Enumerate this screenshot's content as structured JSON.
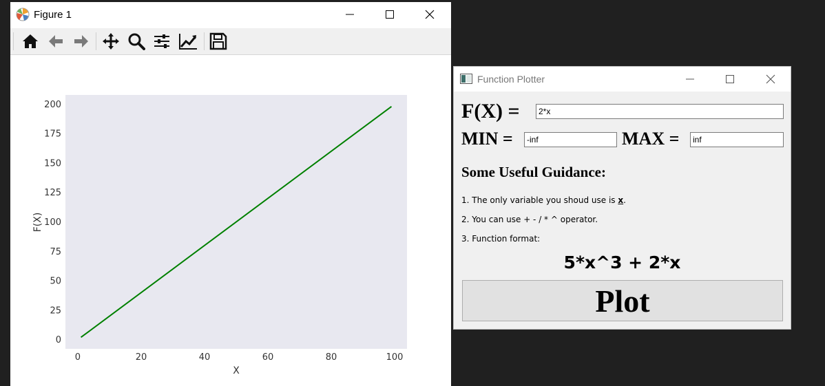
{
  "figure_window": {
    "title": "Figure 1",
    "icon": "matplotlib-logo-icon",
    "toolbar": [
      {
        "name": "home-icon",
        "tooltip": "Home"
      },
      {
        "name": "back-arrow-icon",
        "tooltip": "Back"
      },
      {
        "name": "forward-arrow-icon",
        "tooltip": "Forward"
      },
      {
        "name": "pan-move-icon",
        "tooltip": "Pan"
      },
      {
        "name": "zoom-magnifier-icon",
        "tooltip": "Zoom"
      },
      {
        "name": "configure-subplots-icon",
        "tooltip": "Subplots"
      },
      {
        "name": "edit-axis-icon",
        "tooltip": "Customize"
      },
      {
        "name": "save-floppy-icon",
        "tooltip": "Save"
      }
    ]
  },
  "chart_data": {
    "type": "line",
    "x": [
      1,
      99
    ],
    "series": [
      {
        "values": [
          2,
          198
        ],
        "color": "#008000"
      }
    ],
    "xlabel": "X",
    "ylabel": "F(X)",
    "xticks": [
      0,
      20,
      40,
      60,
      80,
      100
    ],
    "yticks": [
      0,
      25,
      50,
      75,
      100,
      125,
      150,
      175,
      200
    ],
    "xlim": [
      -3.9,
      103.9
    ],
    "ylim": [
      -7.8,
      207.8
    ],
    "background": "#e8e8f0",
    "grid": false
  },
  "function_plotter": {
    "title": "Function Plotter",
    "fx_label": "F(X) =",
    "fx_value": "2*x",
    "min_label": "MIN =",
    "min_value": "-inf",
    "max_label": "MAX =",
    "max_value": "inf",
    "guidance_title": "Some Useful Guidance:",
    "guide1_prefix": "1. The only variable you shoud use is ",
    "guide1_var": "x",
    "guide1_suffix": ".",
    "guide2": "2. You can use + - / * ^ operator.",
    "guide3": "3. Function format:",
    "format_example": "5*x^3 + 2*x",
    "plot_button": "Plot"
  }
}
